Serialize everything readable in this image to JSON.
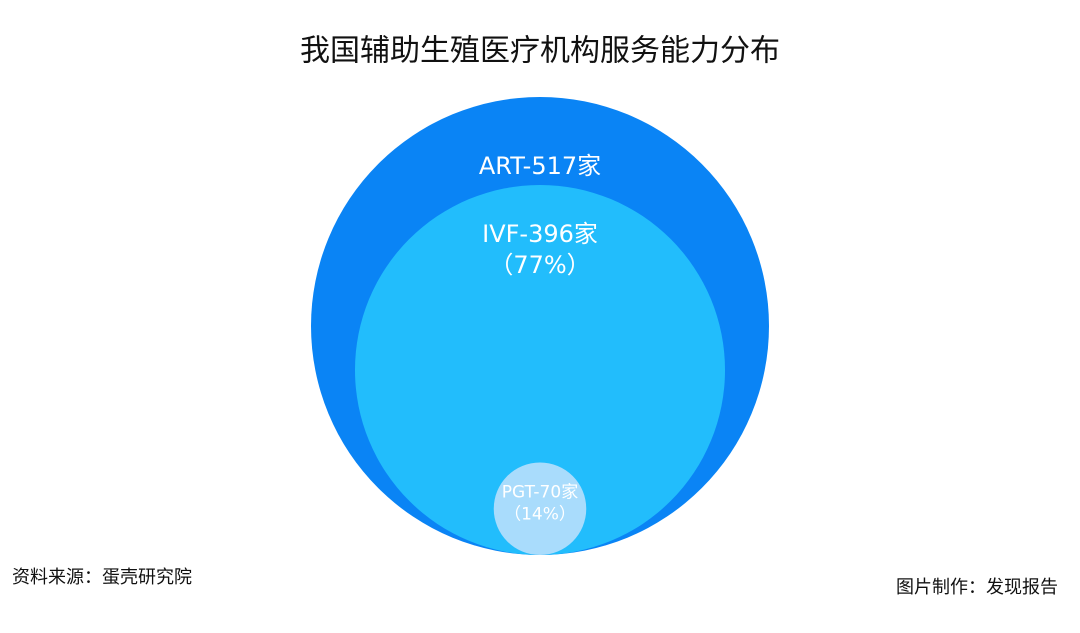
{
  "chart_data": {
    "type": "nested-circles",
    "title": "我国辅助生殖医疗机构服务能力分布",
    "values": [
      517,
      396,
      70
    ],
    "value_labels": [
      "ART-517家",
      "IVF-396家",
      "PGT-70家"
    ],
    "colors": [
      "#0a84f5",
      "#22bdfc",
      "#a9dcfc"
    ],
    "shares": [
      {
        "index": 1,
        "value": 77,
        "label": "（77%）"
      },
      {
        "index": 2,
        "value": 14,
        "label": "（14%）"
      }
    ],
    "source": "资料来源：蛋壳研究院",
    "credit": "图片制作：发现报告"
  }
}
